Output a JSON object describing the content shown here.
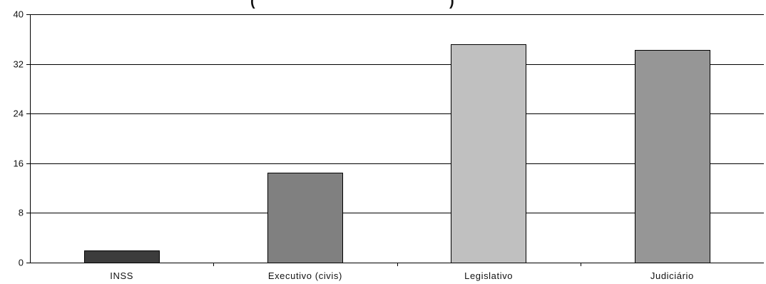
{
  "chart_data": {
    "type": "bar",
    "title": "(",
    "title_suffix": ")",
    "categories": [
      "INSS",
      "Executivo (civis)",
      "Legislativo",
      "Judiciário"
    ],
    "values": [
      1.9,
      14.5,
      35.2,
      34.3
    ],
    "bar_colors": [
      "#3c3c3c",
      "#808080",
      "#c0c0c0",
      "#969696"
    ],
    "ylim": [
      0,
      40
    ],
    "yticks": [
      0,
      8,
      16,
      24,
      32,
      40
    ],
    "xlabel": "",
    "ylabel": "",
    "grid": true,
    "legend": false
  }
}
